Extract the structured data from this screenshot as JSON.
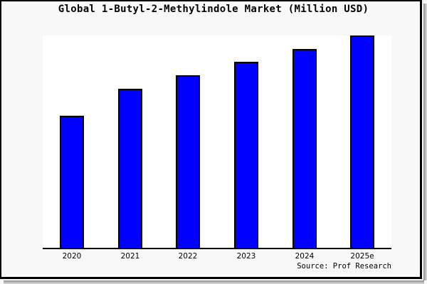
{
  "chart_data": {
    "type": "bar",
    "title": "Global 1-Butyl-2-Methylindole Market (Million USD)",
    "categories": [
      "2020",
      "2021",
      "2022",
      "2023",
      "2024",
      "2025e"
    ],
    "values": [
      62.5,
      75.1,
      81.4,
      87.7,
      93.7,
      100
    ],
    "xlabel": "",
    "ylabel": "",
    "ylim": [
      0,
      100
    ],
    "y_tick_labels_visible": false,
    "grid": false,
    "legend": false,
    "annotations": [
      "Source: Prof Research"
    ]
  },
  "colors": {
    "bar_fill": "#0000ff",
    "bar_edge": "#000000",
    "canvas_background": "#f8f8f8",
    "plot_background": "#ffffff",
    "axis": "#000000",
    "frame": "#000000"
  }
}
